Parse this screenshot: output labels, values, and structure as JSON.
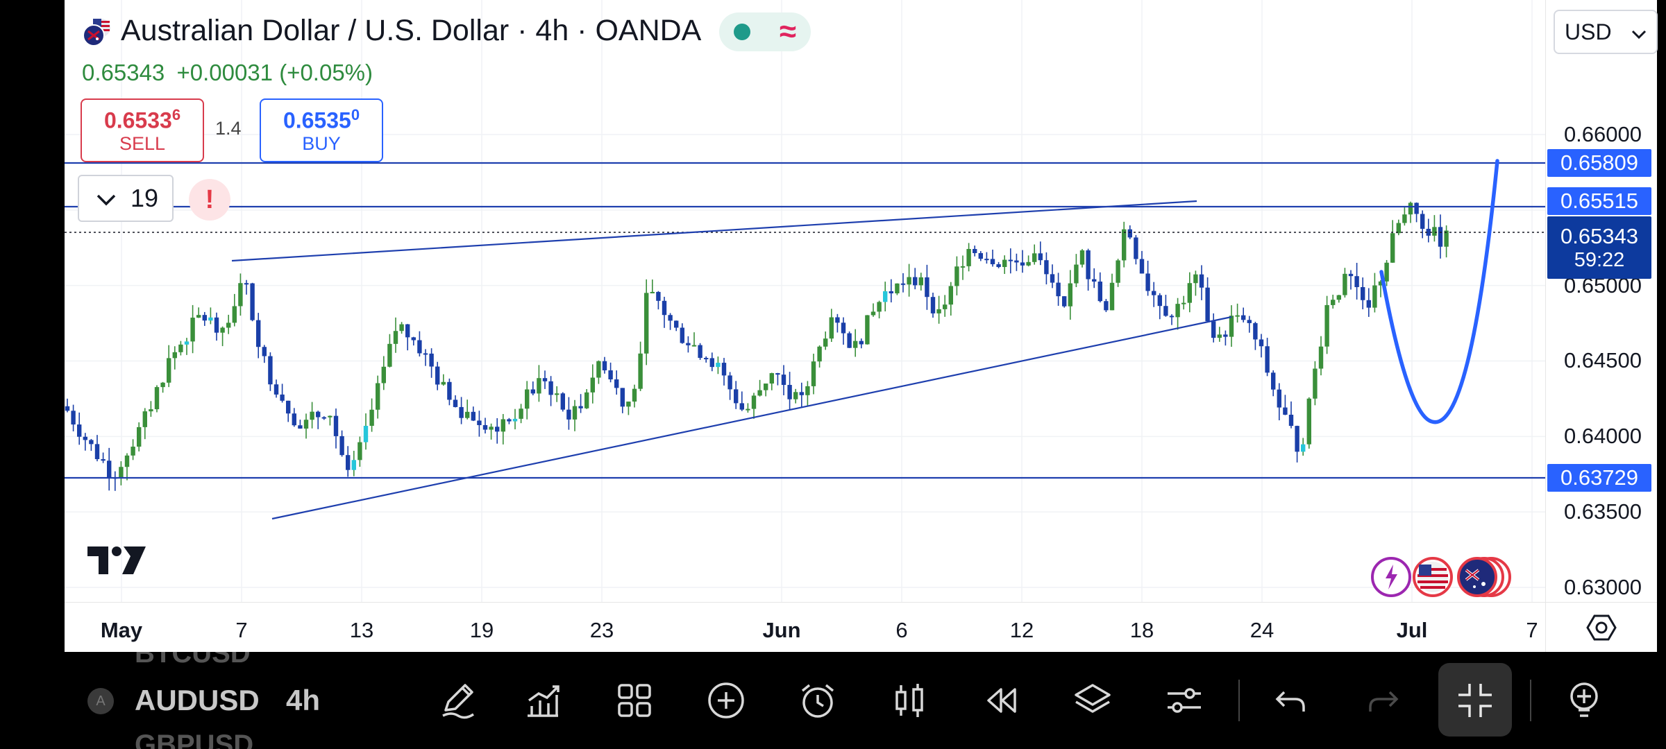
{
  "header": {
    "title": "Australian Dollar / U.S. Dollar · 4h · OANDA",
    "price": "0.65343",
    "change": "+0.00031 (+0.05%)",
    "status_glyph": "≈"
  },
  "trade": {
    "sell_price_main": "0.6533",
    "sell_price_sup": "6",
    "sell_label": "SELL",
    "buy_price_main": "0.6535",
    "buy_price_sup": "0",
    "buy_label": "BUY",
    "spread": "1.4"
  },
  "indicators": {
    "count": "19"
  },
  "currency": {
    "selected": "USD"
  },
  "price_axis": {
    "labels": [
      "0.66000",
      "0.65000",
      "0.64500",
      "0.64000",
      "0.63500",
      "0.63000"
    ],
    "tags": [
      {
        "value": "0.65809",
        "color": "#2962ff"
      },
      {
        "value": "0.65515",
        "color": "#2962ff"
      },
      {
        "value": "0.63729",
        "color": "#2962ff"
      }
    ],
    "current": {
      "value": "0.65343",
      "countdown": "59:22",
      "color": "#0d3a9e"
    }
  },
  "time_axis": {
    "labels": [
      {
        "text": "May",
        "bold": true
      },
      {
        "text": "7",
        "bold": false
      },
      {
        "text": "13",
        "bold": false
      },
      {
        "text": "19",
        "bold": false
      },
      {
        "text": "23",
        "bold": false
      },
      {
        "text": "Jun",
        "bold": true
      },
      {
        "text": "6",
        "bold": false
      },
      {
        "text": "12",
        "bold": false
      },
      {
        "text": "18",
        "bold": false
      },
      {
        "text": "24",
        "bold": false
      },
      {
        "text": "Jul",
        "bold": true
      },
      {
        "text": "7",
        "bold": false
      }
    ]
  },
  "bottom_bar": {
    "symbols": [
      "BTCUSD",
      "AUDUSD",
      "GBPUSD"
    ],
    "interval": "4h",
    "tools": [
      "pencil-icon",
      "indicators-icon",
      "apps-grid-icon",
      "add-circle-icon",
      "alarm-icon",
      "candles-icon",
      "replay-icon",
      "layers-icon",
      "settings-sliders-icon",
      "undo-icon",
      "redo-icon",
      "fullscreen-exit-icon",
      "add-idea-icon"
    ]
  },
  "colors": {
    "up": "#3a8f3a",
    "down": "#1a3fa8",
    "accent": "#2962ff"
  }
}
